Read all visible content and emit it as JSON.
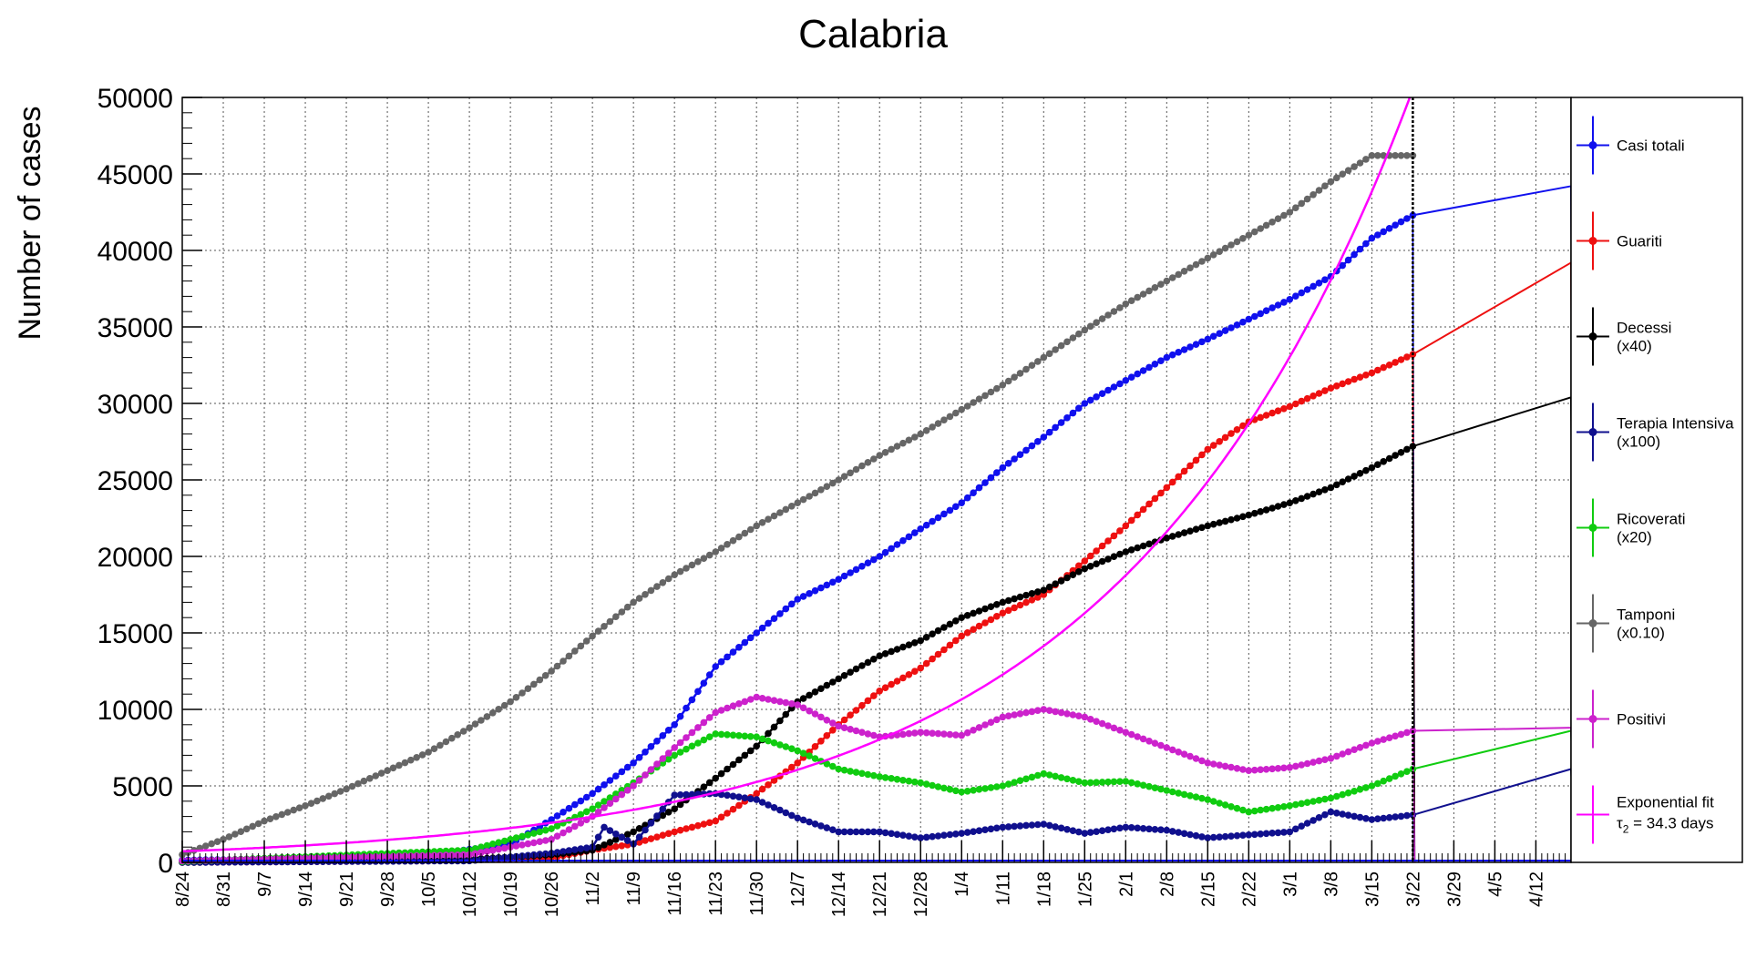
{
  "chart_data": {
    "type": "line",
    "title": "Calabria",
    "ylabel": "Number of cases",
    "xlabel": "",
    "ylim": [
      0,
      50000
    ],
    "ytick_values": [
      0,
      5000,
      10000,
      15000,
      20000,
      25000,
      30000,
      35000,
      40000,
      45000,
      50000
    ],
    "ytick_labels": [
      "0",
      "5000",
      "10000",
      "15000",
      "20000",
      "25000",
      "30000",
      "35000",
      "40000",
      "45000",
      "50000"
    ],
    "x_categories": [
      "8/24",
      "8/31",
      "9/7",
      "9/14",
      "9/21",
      "9/28",
      "10/5",
      "10/12",
      "10/19",
      "10/26",
      "11/2",
      "11/9",
      "11/16",
      "11/23",
      "11/30",
      "12/7",
      "12/14",
      "12/21",
      "12/28",
      "1/4",
      "1/11",
      "1/18",
      "1/25",
      "2/1",
      "2/8",
      "2/15",
      "2/22",
      "3/1",
      "3/8",
      "3/15",
      "3/22",
      "3/29",
      "4/5",
      "4/12"
    ],
    "x_range": [
      "8/24",
      "4/18"
    ],
    "vertical_marker": "3/22",
    "grid": true,
    "legend_position": "right",
    "series": [
      {
        "key": "casi",
        "label": "Casi totali",
        "label2": "",
        "color": "#1010ee",
        "x": [
          "8/24",
          "9/7",
          "9/21",
          "10/5",
          "10/19",
          "10/26",
          "11/2",
          "11/9",
          "11/16",
          "11/23",
          "11/30",
          "12/7",
          "12/14",
          "12/21",
          "12/28",
          "1/4",
          "1/11",
          "1/18",
          "1/25",
          "2/1",
          "2/8",
          "2/15",
          "2/22",
          "3/1",
          "3/8",
          "3/15",
          "3/22"
        ],
        "y": [
          150,
          200,
          300,
          500,
          1200,
          2800,
          4500,
          6500,
          9000,
          12800,
          15000,
          17200,
          18500,
          20000,
          21800,
          23500,
          25800,
          27800,
          30000,
          31500,
          33000,
          34200,
          35500,
          36800,
          38300,
          40800,
          42300
        ],
        "extension": {
          "x": [
            "3/22",
            "4/18"
          ],
          "y": [
            42300,
            44200
          ]
        }
      },
      {
        "key": "guariti",
        "label": "Guariti",
        "label2": "",
        "color": "#ee1010",
        "x": [
          "8/24",
          "10/5",
          "10/26",
          "11/2",
          "11/9",
          "11/16",
          "11/23",
          "11/30",
          "12/7",
          "12/14",
          "12/21",
          "12/28",
          "1/4",
          "1/11",
          "1/18",
          "1/25",
          "2/1",
          "2/8",
          "2/15",
          "2/22",
          "3/1",
          "3/8",
          "3/15",
          "3/22"
        ],
        "y": [
          0,
          100,
          300,
          800,
          1200,
          2000,
          2700,
          4500,
          6500,
          9000,
          11200,
          12700,
          14800,
          16300,
          17500,
          19700,
          22000,
          24500,
          27000,
          28800,
          29800,
          31000,
          32000,
          33200
        ],
        "extension": {
          "x": [
            "3/22",
            "4/18"
          ],
          "y": [
            33200,
            39200
          ]
        }
      },
      {
        "key": "decessi",
        "label": "Decessi",
        "label2": "(x40)",
        "color": "#000000",
        "x": [
          "8/24",
          "10/12",
          "10/26",
          "11/2",
          "11/9",
          "11/16",
          "11/23",
          "11/30",
          "12/7",
          "12/14",
          "12/21",
          "12/28",
          "1/4",
          "1/11",
          "1/18",
          "1/25",
          "2/1",
          "2/8",
          "2/15",
          "2/22",
          "3/1",
          "3/8",
          "3/15",
          "3/22"
        ],
        "y": [
          0,
          200,
          500,
          800,
          2000,
          3500,
          5500,
          7600,
          10500,
          12000,
          13500,
          14500,
          16000,
          17000,
          17800,
          19200,
          20300,
          21200,
          22000,
          22700,
          23500,
          24500,
          25800,
          27200
        ],
        "extension": {
          "x": [
            "3/22",
            "4/18"
          ],
          "y": [
            27200,
            30400
          ]
        }
      },
      {
        "key": "terapia",
        "label": "Terapia Intensiva",
        "label2": "(x100)",
        "color": "#10108e",
        "x": [
          "8/24",
          "10/12",
          "10/26",
          "11/2",
          "11/4",
          "11/9",
          "11/16",
          "11/23",
          "11/30",
          "12/7",
          "12/14",
          "12/21",
          "12/28",
          "1/4",
          "1/11",
          "1/18",
          "1/25",
          "2/1",
          "2/8",
          "2/15",
          "2/22",
          "3/1",
          "3/8",
          "3/15",
          "3/22"
        ],
        "y": [
          0,
          100,
          600,
          1000,
          2300,
          1200,
          4400,
          4500,
          4100,
          2900,
          2000,
          2000,
          1600,
          1900,
          2300,
          2500,
          1900,
          2300,
          2100,
          1600,
          1800,
          2000,
          3300,
          2800,
          3100
        ],
        "extension": {
          "x": [
            "3/22",
            "4/18"
          ],
          "y": [
            3100,
            6100
          ]
        }
      },
      {
        "key": "ricoverati",
        "label": "Ricoverati",
        "label2": "(x20)",
        "color": "#10cc10",
        "x": [
          "8/24",
          "10/12",
          "10/26",
          "11/2",
          "11/9",
          "11/16",
          "11/23",
          "11/30",
          "12/7",
          "12/14",
          "12/21",
          "12/28",
          "1/4",
          "1/11",
          "1/18",
          "1/25",
          "2/1",
          "2/8",
          "2/15",
          "2/22",
          "3/1",
          "3/8",
          "3/15",
          "3/22"
        ],
        "y": [
          50,
          800,
          2200,
          3500,
          5200,
          7000,
          8400,
          8200,
          7300,
          6100,
          5600,
          5200,
          4600,
          5000,
          5800,
          5200,
          5300,
          4700,
          4100,
          3300,
          3700,
          4200,
          5000,
          6100
        ],
        "extension": {
          "x": [
            "3/22",
            "4/18"
          ],
          "y": [
            6100,
            8600
          ]
        }
      },
      {
        "key": "tamponi",
        "label": "Tamponi",
        "label2": "(x0.10)",
        "color": "#666666",
        "x": [
          "8/24",
          "8/31",
          "9/7",
          "9/14",
          "9/21",
          "9/28",
          "10/5",
          "10/12",
          "10/19",
          "10/26",
          "11/2",
          "11/9",
          "11/16",
          "11/23",
          "11/30",
          "12/7",
          "12/14",
          "12/21",
          "12/28",
          "1/4",
          "1/11",
          "1/18",
          "1/25",
          "2/1",
          "2/8",
          "2/15",
          "2/22",
          "3/1",
          "3/8",
          "3/15",
          "3/22"
        ],
        "y": [
          500,
          1500,
          2700,
          3700,
          4800,
          6000,
          7200,
          8800,
          10500,
          12500,
          14800,
          17000,
          18800,
          20300,
          22000,
          23500,
          25000,
          26600,
          28000,
          29600,
          31200,
          33000,
          34800,
          36500,
          38000,
          39500,
          41000,
          42500,
          44500,
          46200,
          46200
        ],
        "extension": null
      },
      {
        "key": "positivi",
        "label": "Positivi",
        "label2": "",
        "color": "#cc22cc",
        "x": [
          "8/24",
          "10/12",
          "10/26",
          "11/2",
          "11/9",
          "11/16",
          "11/23",
          "11/30",
          "12/7",
          "12/14",
          "12/21",
          "12/28",
          "1/4",
          "1/11",
          "1/18",
          "1/25",
          "2/1",
          "2/8",
          "2/15",
          "2/22",
          "3/1",
          "3/8",
          "3/15",
          "3/22"
        ],
        "y": [
          100,
          500,
          1500,
          3000,
          5000,
          7500,
          9800,
          10800,
          10300,
          8900,
          8200,
          8500,
          8300,
          9500,
          10000,
          9500,
          8500,
          7500,
          6500,
          6000,
          6200,
          6800,
          7800,
          8600
        ],
        "extension": {
          "x": [
            "3/22",
            "4/18"
          ],
          "y": [
            8600,
            8800
          ]
        }
      }
    ],
    "fit": {
      "label": "Exponential fit",
      "label2": "τ",
      "label2_sub": "2",
      "label2_rest": " = 34.3 days",
      "color": "#ff00ff",
      "base": 725,
      "doubling_days": 34.3,
      "x_start": "8/24",
      "x_end": "3/29"
    }
  }
}
